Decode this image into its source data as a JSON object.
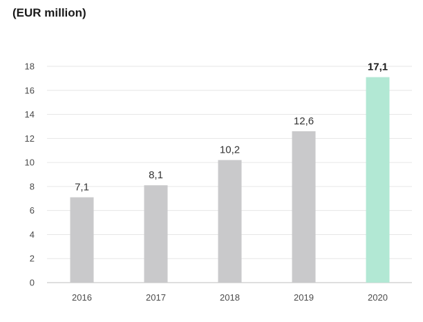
{
  "header": {
    "unit_label": "(EUR million)"
  },
  "chart_data": {
    "type": "bar",
    "title": "",
    "xlabel": "",
    "ylabel": "",
    "categories": [
      "2016",
      "2017",
      "2018",
      "2019",
      "2020"
    ],
    "values": [
      7.1,
      8.1,
      10.2,
      12.6,
      17.1
    ],
    "value_labels": [
      "7,1",
      "8,1",
      "10,2",
      "12,6",
      "17,1"
    ],
    "y_ticks": [
      0,
      2,
      4,
      6,
      8,
      10,
      12,
      14,
      16,
      18
    ],
    "ylim": [
      0,
      18
    ],
    "grid": true,
    "highlight_index": 4,
    "colors": {
      "bar": "#c9c9cb",
      "highlight": "#b2e8d4",
      "grid": "#e6e6e6",
      "axis": "#bdbdbd"
    }
  }
}
